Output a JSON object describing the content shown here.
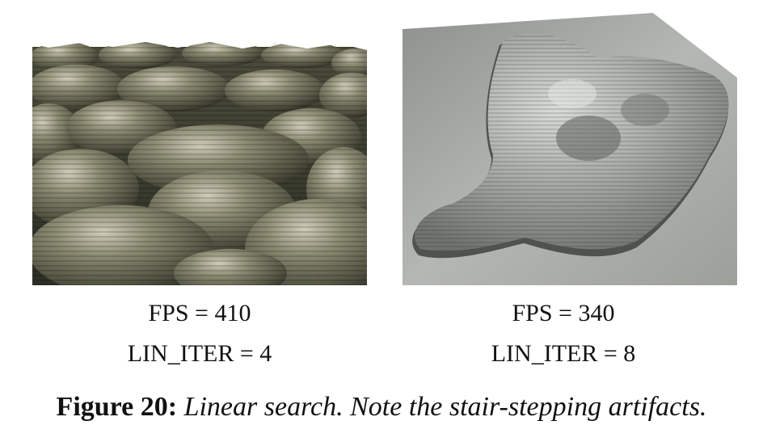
{
  "figure": {
    "label": "Figure 20:",
    "caption": "Linear search. Note the stair-stepping artifacts."
  },
  "panels": [
    {
      "fps": "FPS = 410",
      "lin_iter": "LIN_ITER = 4",
      "surface_color": "#6b6a55"
    },
    {
      "fps": "FPS = 340",
      "lin_iter": "LIN_ITER = 8",
      "surface_color": "#a7aaa6"
    }
  ]
}
